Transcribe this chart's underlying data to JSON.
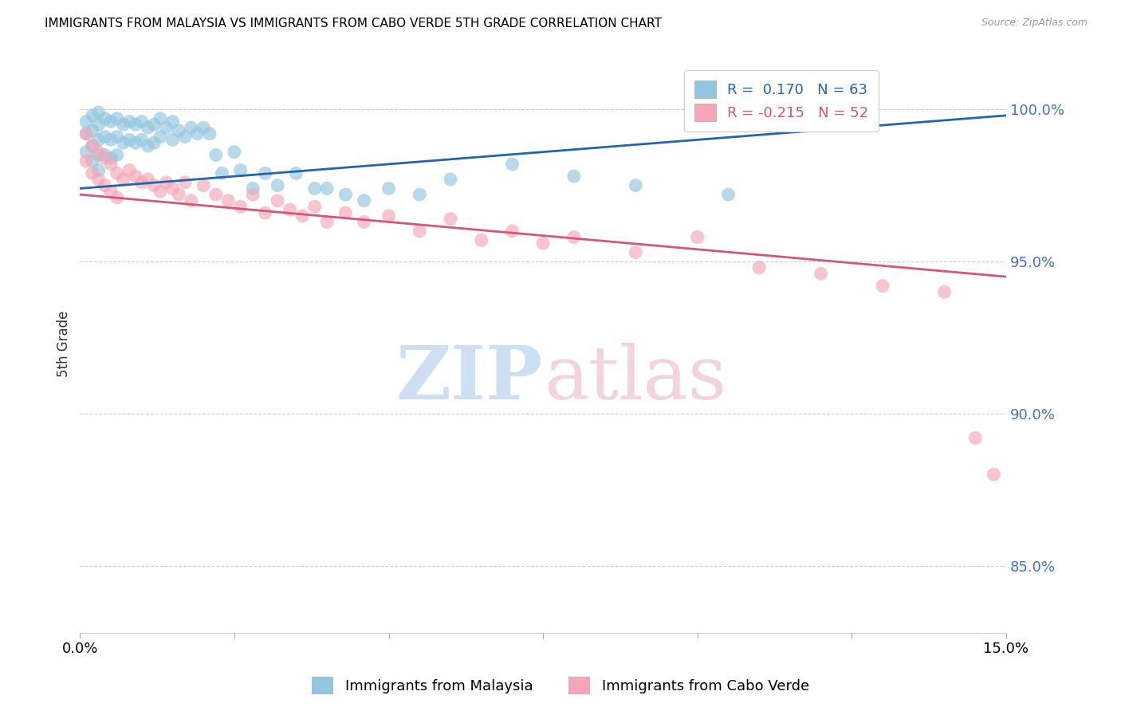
{
  "title": "IMMIGRANTS FROM MALAYSIA VS IMMIGRANTS FROM CABO VERDE 5TH GRADE CORRELATION CHART",
  "source": "Source: ZipAtlas.com",
  "ylabel": "5th Grade",
  "y_tick_labels": [
    "85.0%",
    "90.0%",
    "95.0%",
    "100.0%"
  ],
  "y_tick_values": [
    0.85,
    0.9,
    0.95,
    1.0
  ],
  "xmin": 0.0,
  "xmax": 0.15,
  "ymin": 0.828,
  "ymax": 1.018,
  "malaysia_color": "#92c5de",
  "caboverde_color": "#f4a6b8",
  "malaysia_line_color": "#2166ac",
  "caboverde_line_color": "#d6567a",
  "malaysia_line_y0": 0.974,
  "malaysia_line_y1": 0.998,
  "caboverde_line_y0": 0.972,
  "caboverde_line_y1": 0.945,
  "malaysia_points_x": [
    0.001,
    0.001,
    0.001,
    0.002,
    0.002,
    0.002,
    0.002,
    0.003,
    0.003,
    0.003,
    0.003,
    0.003,
    0.004,
    0.004,
    0.004,
    0.005,
    0.005,
    0.005,
    0.006,
    0.006,
    0.006,
    0.007,
    0.007,
    0.008,
    0.008,
    0.009,
    0.009,
    0.01,
    0.01,
    0.011,
    0.011,
    0.012,
    0.012,
    0.013,
    0.013,
    0.014,
    0.015,
    0.015,
    0.016,
    0.017,
    0.018,
    0.019,
    0.02,
    0.021,
    0.022,
    0.023,
    0.025,
    0.026,
    0.028,
    0.03,
    0.032,
    0.035,
    0.038,
    0.04,
    0.043,
    0.046,
    0.05,
    0.055,
    0.06,
    0.07,
    0.08,
    0.09,
    0.105
  ],
  "malaysia_points_y": [
    0.996,
    0.992,
    0.986,
    0.998,
    0.993,
    0.988,
    0.983,
    0.999,
    0.995,
    0.99,
    0.985,
    0.98,
    0.997,
    0.991,
    0.985,
    0.996,
    0.99,
    0.984,
    0.997,
    0.991,
    0.985,
    0.995,
    0.989,
    0.996,
    0.99,
    0.995,
    0.989,
    0.996,
    0.99,
    0.994,
    0.988,
    0.995,
    0.989,
    0.997,
    0.991,
    0.994,
    0.996,
    0.99,
    0.993,
    0.991,
    0.994,
    0.992,
    0.994,
    0.992,
    0.985,
    0.979,
    0.986,
    0.98,
    0.974,
    0.979,
    0.975,
    0.979,
    0.974,
    0.974,
    0.972,
    0.97,
    0.974,
    0.972,
    0.977,
    0.982,
    0.978,
    0.975,
    0.972
  ],
  "caboverde_points_x": [
    0.001,
    0.001,
    0.002,
    0.002,
    0.003,
    0.003,
    0.004,
    0.004,
    0.005,
    0.005,
    0.006,
    0.006,
    0.007,
    0.008,
    0.009,
    0.01,
    0.011,
    0.012,
    0.013,
    0.014,
    0.015,
    0.016,
    0.017,
    0.018,
    0.02,
    0.022,
    0.024,
    0.026,
    0.028,
    0.03,
    0.032,
    0.034,
    0.036,
    0.038,
    0.04,
    0.043,
    0.046,
    0.05,
    0.055,
    0.06,
    0.065,
    0.07,
    0.075,
    0.08,
    0.09,
    0.1,
    0.11,
    0.12,
    0.13,
    0.14,
    0.145,
    0.148
  ],
  "caboverde_points_y": [
    0.992,
    0.983,
    0.988,
    0.979,
    0.986,
    0.977,
    0.984,
    0.975,
    0.982,
    0.973,
    0.979,
    0.971,
    0.977,
    0.98,
    0.978,
    0.976,
    0.977,
    0.975,
    0.973,
    0.976,
    0.974,
    0.972,
    0.976,
    0.97,
    0.975,
    0.972,
    0.97,
    0.968,
    0.972,
    0.966,
    0.97,
    0.967,
    0.965,
    0.968,
    0.963,
    0.966,
    0.963,
    0.965,
    0.96,
    0.964,
    0.957,
    0.96,
    0.956,
    0.958,
    0.953,
    0.958,
    0.948,
    0.946,
    0.942,
    0.94,
    0.892,
    0.88
  ]
}
